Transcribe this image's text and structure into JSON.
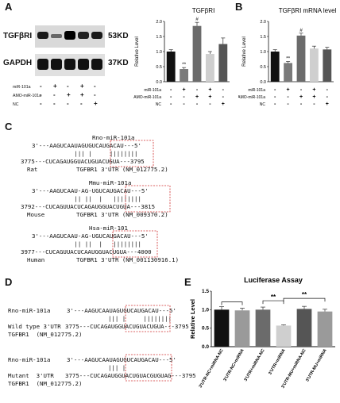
{
  "panel_labels": {
    "a": "A",
    "b": "B",
    "c": "C",
    "d": "D",
    "e": "E"
  },
  "panel_a": {
    "blots": [
      {
        "protein": "TGFβRI",
        "size": "53KD"
      },
      {
        "protein": "GAPDH",
        "size": "37KD"
      }
    ],
    "conditions": [
      "miR-101a",
      "AMO-miR-101a",
      "NC"
    ],
    "signs": [
      [
        "-",
        "+",
        "-",
        "+",
        "-"
      ],
      [
        "-",
        "-",
        "+",
        "+",
        "-"
      ],
      [
        "-",
        "-",
        "-",
        "-",
        "+"
      ]
    ]
  },
  "panel_b_title": "TGFβRI    mRNA level",
  "panel_c": {
    "blocks": [
      {
        "mirna": "Rno-miR-101a",
        "mir_seq": "3'---AAGUCAAUAGUGUCAUGACAU---5'",
        "pairs": "            ||| |     ||||||||",
        "utr_seq": "3775---CUCAGAUGGUACUGUACUGUA---3795",
        "species": "Rat",
        "utr_name": "TGFBR1 3'UTR (NM_012775.2)"
      },
      {
        "mirna": "Mmu-miR-101a",
        "mir_seq": "3'---AAGUCAAU-AG-UGUCAUGACAU---5'",
        "pairs": "            || ||  |   ||||||||",
        "utr_seq": "3792---CUCAGUUACUCAGAUGGUACUGUA---3815",
        "species": "Mouse",
        "utr_name": "TGFBR1 3'UTR (NM_009370.2)"
      },
      {
        "mirna": "Hsa-miR-101",
        "mir_seq": "3'---AAGUCAAU-AG-UGUCAUGACAU---5'",
        "pairs": "            || ||  |   ||||||||",
        "utr_seq": "3977---CUCAGUUACUCAAUGGUACUGUA---4000",
        "species": "Human",
        "utr_name": "TGFBR1 3'UTR (NM_001130916.1)"
      }
    ]
  },
  "panel_d": {
    "blocks": [
      {
        "mirna": "Rno-miR-101a",
        "mir_seq": "3'---AAGUCAAUAGUGUCAUGACAU---5'",
        "pairs": "||| |     ||||||||",
        "utr_prefix": "Wild type 3'UTR",
        "utr_seq": "3775---CUCAGAUGGUACUGUACUGUA---3795",
        "utr_name": "TGFBR1  (NM_012775.2)"
      },
      {
        "mirna": "Rno-miR-101a",
        "mir_seq": "3'---AAGUCAAUAGUGUCAUGACAU---5'",
        "pairs": "||| |     ",
        "utr_prefix": "Mutant  3'UTR",
        "utr_seq": "3775---CUCAGAUGGUACUGUACGUGUAG---3795",
        "utr_name": "TGFBR1  (NM_012775.2)"
      }
    ]
  },
  "chart_data": [
    {
      "type": "bar",
      "title": "TGFβRI",
      "ylabel": "Relative Level",
      "ylim": [
        0,
        2.0
      ],
      "yticks": [
        "0.0",
        "0.5",
        "1.0",
        "1.5",
        "2.0"
      ],
      "values": [
        1.0,
        0.42,
        1.85,
        0.92,
        1.25
      ],
      "errors": [
        0.06,
        0.05,
        0.12,
        0.08,
        0.2
      ],
      "colors": [
        "#111111",
        "#7a7a7a",
        "#6b6b6b",
        "#cfcfcf",
        "#555555"
      ],
      "significance": [
        "",
        "**",
        "#",
        "",
        ""
      ],
      "conditions": [
        "miR-101a",
        "AMO-miR-101a",
        "NC"
      ],
      "signs": [
        [
          "-",
          "+",
          "-",
          "+",
          "-"
        ],
        [
          "-",
          "-",
          "+",
          "+",
          "-"
        ],
        [
          "-",
          "-",
          "-",
          "-",
          "+"
        ]
      ]
    },
    {
      "type": "bar",
      "title": "TGFβRI    mRNA level",
      "ylabel": "Relative Level",
      "ylim": [
        0,
        2.0
      ],
      "yticks": [
        "0.0",
        "0.5",
        "1.0",
        "1.5",
        "2.0"
      ],
      "values": [
        1.0,
        0.62,
        1.53,
        1.1,
        1.07
      ],
      "errors": [
        0.06,
        0.05,
        0.08,
        0.08,
        0.07
      ],
      "colors": [
        "#111111",
        "#7a7a7a",
        "#6b6b6b",
        "#cfcfcf",
        "#555555"
      ],
      "significance": [
        "",
        "**",
        "#",
        "",
        ""
      ],
      "conditions": [
        "miR-101a",
        "AMO-miR-101a",
        "NC"
      ],
      "signs": [
        [
          "-",
          "+",
          "-",
          "+",
          "-"
        ],
        [
          "-",
          "-",
          "+",
          "+",
          "-"
        ],
        [
          "-",
          "-",
          "-",
          "-",
          "+"
        ]
      ]
    },
    {
      "type": "bar",
      "title": "Luciferase Assay",
      "ylabel": "Relative Level",
      "ylim": [
        0,
        1.5
      ],
      "yticks": [
        "0.0",
        "0.5",
        "1.0",
        "1.5"
      ],
      "categories": [
        "3'UTR-NC+miRNA-NC",
        "3'UTR-NC+miRNA",
        "3'UTR+miRNA-NC",
        "3'UTR+miRNA",
        "3'UTR-MU+miRNA-NC",
        "3'UTR-MU+miRNA"
      ],
      "values": [
        1.0,
        0.98,
        1.0,
        0.57,
        1.02,
        0.95
      ],
      "errors": [
        0.08,
        0.06,
        0.07,
        0.02,
        0.07,
        0.06
      ],
      "colors": [
        "#111111",
        "#9a9a9a",
        "#6b6b6b",
        "#cfcfcf",
        "#555555",
        "#9a9a9a"
      ],
      "brackets": [
        {
          "from": 0,
          "to": 1,
          "label": ""
        },
        {
          "from": 2,
          "to": 3,
          "label": "**"
        },
        {
          "from": 3,
          "to": 5,
          "label": "**"
        }
      ]
    }
  ]
}
